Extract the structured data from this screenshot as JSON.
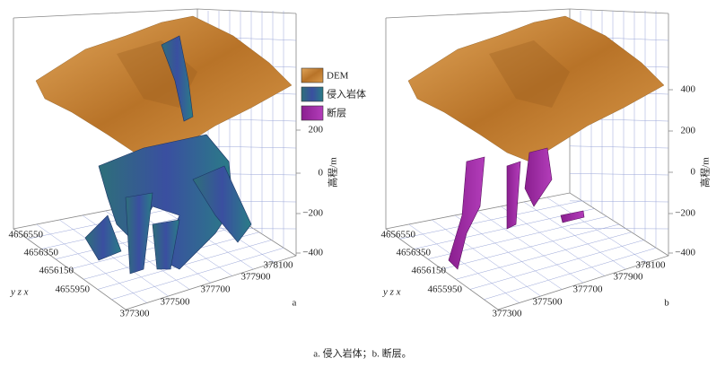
{
  "panels": [
    {
      "label": "a",
      "z_axis_label": "高程/m",
      "z_ticks": [
        "200",
        "0",
        "−200",
        "−400"
      ],
      "y_ticks": [
        "4656550",
        "4656350",
        "4656150",
        "4655950"
      ],
      "x_ticks": [
        "377300",
        "377500",
        "377700",
        "377900",
        "378100"
      ],
      "axis_icon": "y z x"
    },
    {
      "label": "b",
      "z_axis_label": "高程/m",
      "z_ticks": [
        "400",
        "200",
        "0",
        "−200",
        "−400"
      ],
      "y_ticks": [
        "4656550",
        "4656350",
        "4656150",
        "4655950"
      ],
      "x_ticks": [
        "377300",
        "377500",
        "377700",
        "377900",
        "378100"
      ],
      "axis_icon": "y z x"
    }
  ],
  "legend": [
    "DEM",
    "侵入岩体",
    "断层"
  ],
  "caption": "a. 侵入岩体；b. 断层。"
}
